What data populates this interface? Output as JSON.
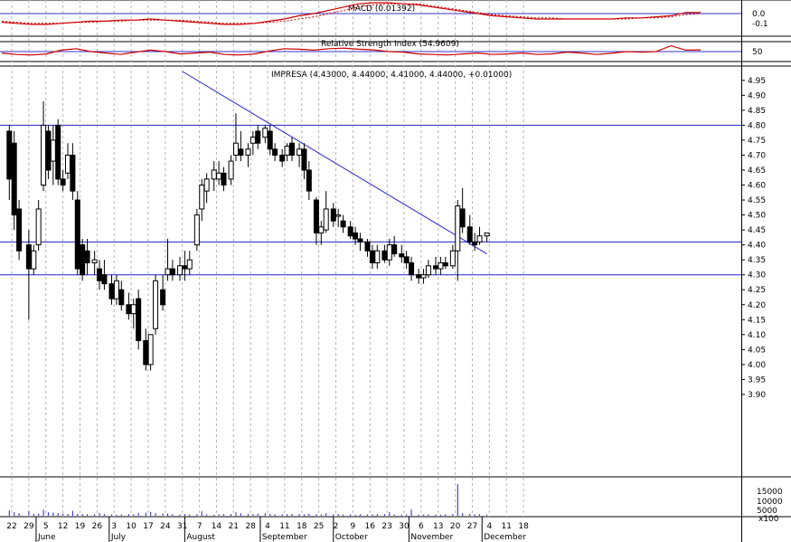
{
  "panels": {
    "macd": {
      "title": "MACD (0.01392)",
      "ticks": [
        "0.0",
        "-0.1"
      ],
      "values": [
        -0.08,
        -0.09,
        -0.1,
        -0.1,
        -0.09,
        -0.08,
        -0.07,
        -0.07,
        -0.06,
        -0.06,
        -0.05,
        -0.06,
        -0.07,
        -0.08,
        -0.09,
        -0.1,
        -0.1,
        -0.09,
        -0.07,
        -0.05,
        -0.02,
        0.0,
        0.03,
        0.06,
        0.09,
        0.1,
        0.1,
        0.09,
        0.08,
        0.06,
        0.04,
        0.02,
        0.0,
        -0.02,
        -0.03,
        -0.04,
        -0.05,
        -0.05,
        -0.05,
        -0.05,
        -0.05,
        -0.05,
        -0.04,
        -0.04,
        -0.03,
        -0.02,
        0.01,
        0.01
      ],
      "signal": [
        -0.07,
        -0.08,
        -0.09,
        -0.09,
        -0.09,
        -0.08,
        -0.08,
        -0.07,
        -0.07,
        -0.06,
        -0.06,
        -0.06,
        -0.06,
        -0.07,
        -0.08,
        -0.09,
        -0.09,
        -0.09,
        -0.08,
        -0.07,
        -0.05,
        -0.03,
        0.0,
        0.03,
        0.06,
        0.08,
        0.09,
        0.09,
        0.09,
        0.07,
        0.05,
        0.03,
        0.01,
        -0.01,
        -0.02,
        -0.03,
        -0.04,
        -0.04,
        -0.05,
        -0.05,
        -0.05,
        -0.05,
        -0.05,
        -0.04,
        -0.04,
        -0.03,
        -0.01,
        0.0
      ]
    },
    "rsi": {
      "title": "Relative Strength Index (54.9609)",
      "ticks": [
        "50"
      ],
      "values": [
        45,
        40,
        38,
        42,
        55,
        60,
        50,
        45,
        40,
        48,
        55,
        50,
        42,
        45,
        48,
        40,
        38,
        42,
        52,
        60,
        58,
        55,
        60,
        62,
        58,
        56,
        50,
        48,
        42,
        40,
        38,
        42,
        45,
        40,
        42,
        45,
        40,
        42,
        48,
        45,
        40,
        44,
        50,
        48,
        50,
        70,
        55,
        56
      ]
    },
    "price": {
      "title": "IMPRESA (4.43000, 4.44000, 4.41000, 4.44000, +0.01000)"
    },
    "volume": {
      "ticks": [
        "15000",
        "10000",
        "5000"
      ],
      "unit": "x100"
    }
  },
  "chart_data": {
    "type": "candlestick",
    "title": "IMPRESA (4.43000, 4.44000, 4.41000, 4.44000, +0.01000)",
    "ylim": [
      3.88,
      4.97
    ],
    "yticks": [
      3.9,
      3.95,
      4.0,
      4.05,
      4.1,
      4.15,
      4.2,
      4.25,
      4.3,
      4.35,
      4.4,
      4.45,
      4.5,
      4.55,
      4.6,
      4.65,
      4.7,
      4.75,
      4.8,
      4.85,
      4.9,
      4.95
    ],
    "horizontal_lines": [
      4.8,
      4.41,
      4.3
    ],
    "trendline": {
      "from": [
        "2007-07-31",
        4.98
      ],
      "to": [
        "2007-12-03",
        4.37
      ]
    },
    "x_day_labels": [
      "22",
      "29",
      "5",
      "12",
      "19",
      "26",
      "3",
      "10",
      "17",
      "24",
      "31",
      "7",
      "14",
      "21",
      "28",
      "4",
      "11",
      "18",
      "25",
      "2",
      "9",
      "16",
      "23",
      "30",
      "6",
      "13",
      "20",
      "27",
      "4",
      "11",
      "18"
    ],
    "x_month_labels": [
      "June",
      "July",
      "August",
      "September",
      "October",
      "November",
      "December"
    ],
    "candles": [
      [
        "2007-05-21",
        4.78,
        4.8,
        4.55,
        4.62
      ],
      [
        "2007-05-23",
        4.74,
        4.78,
        4.45,
        4.5
      ],
      [
        "2007-05-25",
        4.52,
        4.55,
        4.35,
        4.38
      ],
      [
        "2007-05-29",
        4.4,
        4.45,
        4.15,
        4.32
      ],
      [
        "2007-05-31",
        4.32,
        4.4,
        4.3,
        4.38
      ],
      [
        "2007-06-02",
        4.4,
        4.55,
        4.38,
        4.52
      ],
      [
        "2007-06-04",
        4.6,
        4.88,
        4.58,
        4.8
      ],
      [
        "2007-06-06",
        4.78,
        4.8,
        4.62,
        4.65
      ],
      [
        "2007-06-08",
        4.68,
        4.8,
        4.6,
        4.75
      ],
      [
        "2007-06-10",
        4.8,
        4.82,
        4.6,
        4.62
      ],
      [
        "2007-06-12",
        4.62,
        4.65,
        4.58,
        4.6
      ],
      [
        "2007-06-14",
        4.64,
        4.74,
        4.62,
        4.7
      ],
      [
        "2007-06-16",
        4.7,
        4.74,
        4.55,
        4.58
      ],
      [
        "2007-06-18",
        4.55,
        4.58,
        4.3,
        4.32
      ],
      [
        "2007-06-20",
        4.4,
        4.42,
        4.28,
        4.3
      ],
      [
        "2007-06-22",
        4.38,
        4.42,
        4.3,
        4.34
      ],
      [
        "2007-06-25",
        4.34,
        4.38,
        4.3,
        4.35
      ],
      [
        "2007-06-27",
        4.32,
        4.35,
        4.25,
        4.28
      ],
      [
        "2007-06-29",
        4.3,
        4.35,
        4.25,
        4.27
      ],
      [
        "2007-07-02",
        4.27,
        4.3,
        4.2,
        4.22
      ],
      [
        "2007-07-04",
        4.22,
        4.3,
        4.2,
        4.28
      ],
      [
        "2007-07-06",
        4.25,
        4.28,
        4.18,
        4.2
      ],
      [
        "2007-07-09",
        4.2,
        4.24,
        4.15,
        4.17
      ],
      [
        "2007-07-11",
        4.17,
        4.22,
        4.12,
        4.2
      ],
      [
        "2007-07-13",
        4.22,
        4.25,
        4.05,
        4.08
      ],
      [
        "2007-07-16",
        4.08,
        4.12,
        3.98,
        4.0
      ],
      [
        "2007-07-18",
        4.0,
        4.1,
        3.98,
        4.1
      ],
      [
        "2007-07-20",
        4.12,
        4.3,
        4.1,
        4.28
      ],
      [
        "2007-07-23",
        4.25,
        4.3,
        4.18,
        4.2
      ],
      [
        "2007-07-25",
        4.3,
        4.42,
        4.28,
        4.32
      ],
      [
        "2007-07-27",
        4.32,
        4.35,
        4.28,
        4.3
      ],
      [
        "2007-07-30",
        4.3,
        4.36,
        4.28,
        4.33
      ],
      [
        "2007-08-01",
        4.33,
        4.38,
        4.28,
        4.32
      ],
      [
        "2007-08-03",
        4.32,
        4.38,
        4.3,
        4.35
      ],
      [
        "2007-08-06",
        4.4,
        4.52,
        4.38,
        4.5
      ],
      [
        "2007-08-08",
        4.52,
        4.62,
        4.48,
        4.6
      ],
      [
        "2007-08-10",
        4.58,
        4.64,
        4.54,
        4.62
      ],
      [
        "2007-08-13",
        4.62,
        4.68,
        4.58,
        4.65
      ],
      [
        "2007-08-15",
        4.62,
        4.68,
        4.6,
        4.64
      ],
      [
        "2007-08-17",
        4.64,
        4.66,
        4.58,
        4.6
      ],
      [
        "2007-08-20",
        4.62,
        4.7,
        4.6,
        4.68
      ],
      [
        "2007-08-22",
        4.7,
        4.84,
        4.68,
        4.74
      ],
      [
        "2007-08-24",
        4.72,
        4.78,
        4.68,
        4.7
      ],
      [
        "2007-08-27",
        4.7,
        4.74,
        4.66,
        4.72
      ],
      [
        "2007-08-29",
        4.74,
        4.78,
        4.7,
        4.76
      ],
      [
        "2007-08-31",
        4.78,
        4.8,
        4.72,
        4.74
      ],
      [
        "2007-09-03",
        4.76,
        4.8,
        4.74,
        4.79
      ],
      [
        "2007-09-05",
        4.78,
        4.8,
        4.7,
        4.72
      ],
      [
        "2007-09-07",
        4.72,
        4.74,
        4.68,
        4.7
      ],
      [
        "2007-09-10",
        4.7,
        4.72,
        4.66,
        4.68
      ],
      [
        "2007-09-12",
        4.7,
        4.74,
        4.68,
        4.73
      ],
      [
        "2007-09-14",
        4.74,
        4.76,
        4.68,
        4.7
      ],
      [
        "2007-09-17",
        4.7,
        4.74,
        4.66,
        4.72
      ],
      [
        "2007-09-19",
        4.72,
        4.74,
        4.62,
        4.65
      ],
      [
        "2007-09-21",
        4.65,
        4.68,
        4.55,
        4.58
      ],
      [
        "2007-09-24",
        4.55,
        4.56,
        4.4,
        4.44
      ],
      [
        "2007-09-26",
        4.44,
        4.48,
        4.4,
        4.46
      ],
      [
        "2007-09-28",
        4.45,
        4.58,
        4.44,
        4.52
      ],
      [
        "2007-10-01",
        4.52,
        4.54,
        4.46,
        4.48
      ],
      [
        "2007-10-03",
        4.5,
        4.52,
        4.46,
        4.5
      ],
      [
        "2007-10-05",
        4.48,
        4.5,
        4.44,
        4.46
      ],
      [
        "2007-10-08",
        4.46,
        4.48,
        4.42,
        4.43
      ],
      [
        "2007-10-10",
        4.44,
        4.46,
        4.4,
        4.42
      ],
      [
        "2007-10-12",
        4.42,
        4.44,
        4.38,
        4.41
      ],
      [
        "2007-10-15",
        4.41,
        4.42,
        4.36,
        4.38
      ],
      [
        "2007-10-17",
        4.38,
        4.4,
        4.32,
        4.34
      ],
      [
        "2007-10-19",
        4.34,
        4.4,
        4.32,
        4.38
      ],
      [
        "2007-10-22",
        4.38,
        4.4,
        4.34,
        4.35
      ],
      [
        "2007-10-24",
        4.35,
        4.42,
        4.33,
        4.4
      ],
      [
        "2007-10-26",
        4.4,
        4.43,
        4.36,
        4.37
      ],
      [
        "2007-10-29",
        4.37,
        4.4,
        4.34,
        4.36
      ],
      [
        "2007-10-31",
        4.36,
        4.38,
        4.32,
        4.34
      ],
      [
        "2007-11-02",
        4.34,
        4.36,
        4.28,
        4.3
      ],
      [
        "2007-11-05",
        4.3,
        4.32,
        4.27,
        4.29
      ],
      [
        "2007-11-07",
        4.29,
        4.32,
        4.27,
        4.3
      ],
      [
        "2007-11-09",
        4.3,
        4.35,
        4.29,
        4.33
      ],
      [
        "2007-11-12",
        4.33,
        4.36,
        4.3,
        4.32
      ],
      [
        "2007-11-14",
        4.32,
        4.36,
        4.3,
        4.34
      ],
      [
        "2007-11-16",
        4.34,
        4.36,
        4.32,
        4.33
      ],
      [
        "2007-11-19",
        4.33,
        4.4,
        4.32,
        4.38
      ],
      [
        "2007-11-21",
        4.38,
        4.55,
        4.28,
        4.53
      ],
      [
        "2007-11-23",
        4.52,
        4.59,
        4.44,
        4.46
      ],
      [
        "2007-11-26",
        4.46,
        4.5,
        4.4,
        4.41
      ],
      [
        "2007-11-28",
        4.41,
        4.44,
        4.38,
        4.4
      ],
      [
        "2007-11-30",
        4.41,
        4.46,
        4.4,
        4.43
      ],
      [
        "2007-12-03",
        4.43,
        4.44,
        4.41,
        4.44
      ]
    ],
    "volume": [
      3000,
      2000,
      1500,
      2500,
      1000,
      1200,
      3500,
      2000,
      1800,
      1500,
      1200,
      1000,
      2800,
      1200,
      1000,
      900,
      800,
      1500,
      900,
      700,
      600,
      800,
      1000,
      900,
      1600,
      1800,
      2200,
      1500,
      1300,
      1200,
      900,
      800,
      1000,
      700,
      900,
      2500,
      800,
      600,
      700,
      900,
      1000,
      2000,
      1400,
      1100,
      900,
      1200,
      1500,
      1000,
      900,
      800,
      900,
      1000,
      1000,
      800,
      1200,
      900,
      800,
      1500,
      900,
      1000,
      700,
      800,
      600,
      900,
      700,
      800,
      1000,
      900,
      2000,
      700,
      600,
      800,
      3500,
      700,
      600,
      800,
      700,
      600,
      900,
      1000,
      18000,
      1500,
      1000,
      800,
      900,
      700
    ]
  }
}
